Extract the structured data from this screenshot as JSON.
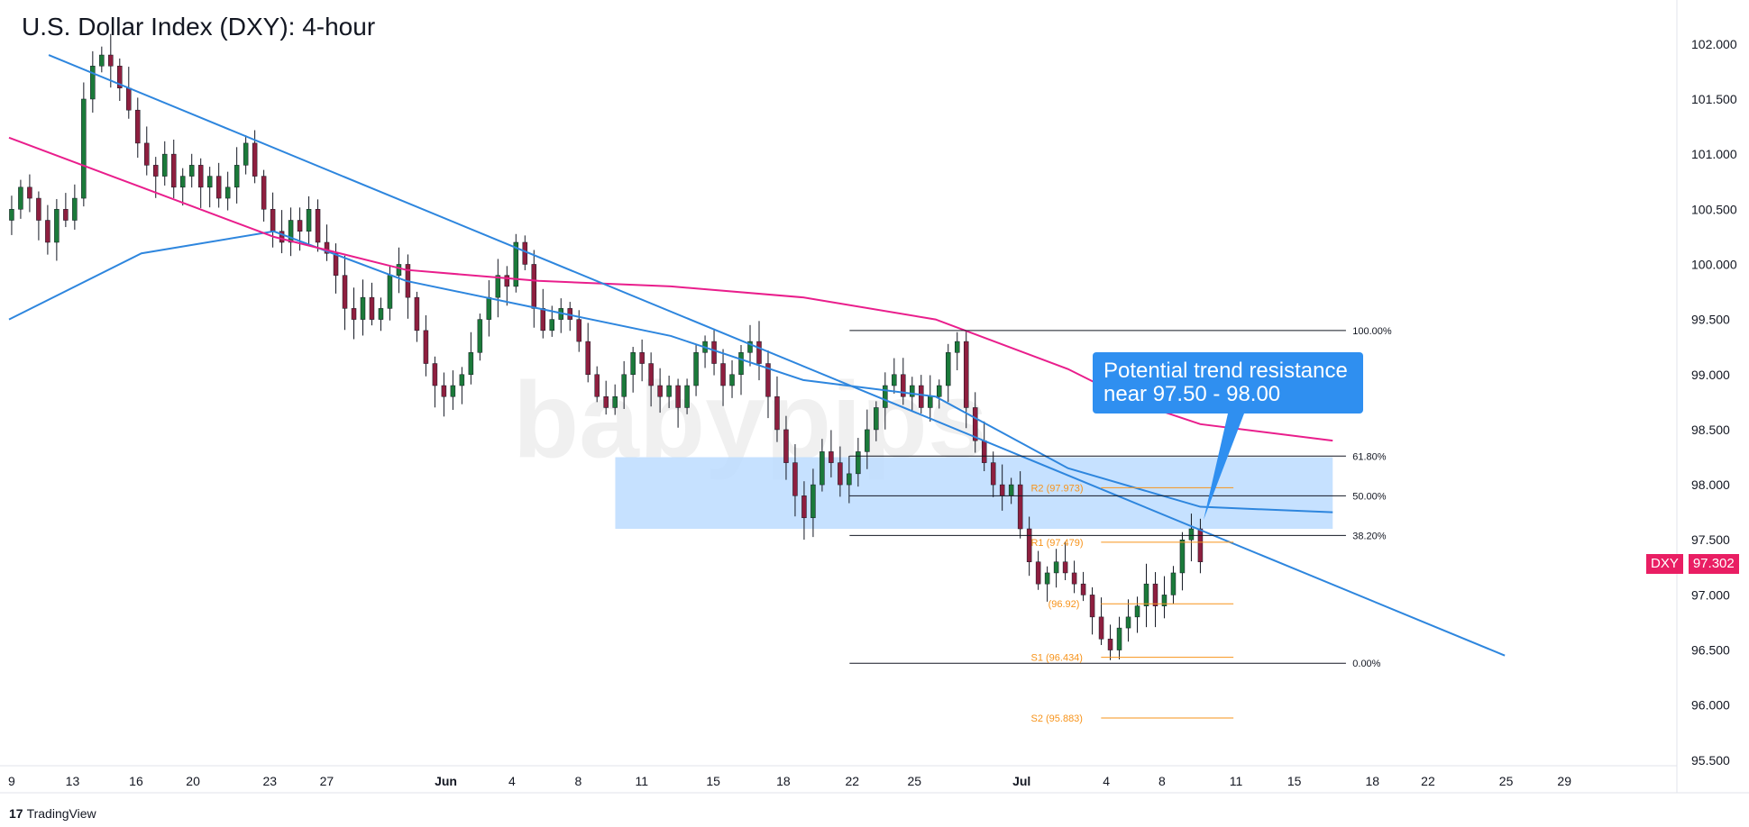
{
  "title": "U.S. Dollar Index (DXY): 4-hour",
  "brand": "TradingView",
  "brand_icon": "tradingview-logo-icon",
  "watermark": "babypips",
  "annotation": {
    "line1": "Potential trend resistance",
    "line2": "near 97.50 - 98.00"
  },
  "colors": {
    "up": "#26a69a",
    "up_body": "#1b7a3a",
    "down": "#8e1f3f",
    "ma_fast": "#2e86de",
    "ma_slow": "#e91e8c",
    "trendline": "#2e86de",
    "zone": "#bcdcff",
    "fib": "#131722",
    "pivot": "#f7931a",
    "callout": "#2f8ff0",
    "tag": "#e91e63"
  },
  "last_price": {
    "symbol": "DXY",
    "value": "97.302"
  },
  "chart_data": {
    "type": "candlestick",
    "ylim": [
      95.45,
      102.35
    ],
    "y_ticks": [
      "102.000",
      "101.500",
      "101.000",
      "100.500",
      "100.000",
      "99.500",
      "99.000",
      "98.500",
      "98.000",
      "97.500",
      "97.000",
      "96.500",
      "96.000",
      "95.500"
    ],
    "y_tick_values": [
      102.0,
      101.5,
      101.0,
      100.5,
      100.0,
      99.5,
      99.0,
      98.5,
      98.0,
      97.5,
      97.0,
      96.5,
      96.0,
      95.5
    ],
    "x_labels": [
      "9",
      "13",
      "16",
      "20",
      "23",
      "27",
      "Jun",
      "4",
      "8",
      "11",
      "15",
      "18",
      "22",
      "25",
      "Jul",
      "4",
      "8",
      "11",
      "15",
      "18",
      "22",
      "25",
      "29"
    ],
    "x_label_pos": [
      2,
      48,
      96,
      139,
      197,
      240,
      330,
      380,
      430,
      478,
      532,
      585,
      637,
      684,
      765,
      829,
      871,
      927,
      971,
      1030,
      1072,
      1131,
      1175
    ],
    "x_range": [
      0,
      1260
    ],
    "candles_close": [
      100.5,
      100.7,
      100.6,
      100.4,
      100.2,
      100.5,
      100.4,
      100.6,
      101.5,
      101.8,
      101.9,
      101.8,
      101.6,
      101.4,
      101.1,
      100.9,
      100.8,
      101.0,
      100.7,
      100.8,
      100.9,
      100.7,
      100.8,
      100.6,
      100.7,
      100.9,
      101.1,
      100.8,
      100.5,
      100.3,
      100.2,
      100.4,
      100.3,
      100.5,
      100.2,
      100.1,
      99.9,
      99.6,
      99.5,
      99.7,
      99.5,
      99.6,
      99.9,
      100.0,
      99.7,
      99.4,
      99.1,
      98.9,
      98.8,
      98.9,
      99.0,
      99.2,
      99.5,
      99.7,
      99.9,
      99.8,
      100.2,
      100.0,
      99.6,
      99.4,
      99.5,
      99.6,
      99.5,
      99.3,
      99.0,
      98.8,
      98.7,
      98.8,
      99.0,
      99.2,
      99.1,
      98.9,
      98.8,
      98.9,
      98.7,
      98.9,
      99.2,
      99.3,
      99.1,
      98.9,
      99.0,
      99.2,
      99.3,
      99.1,
      98.8,
      98.5,
      98.2,
      97.9,
      97.7,
      98.0,
      98.3,
      98.2,
      98.0,
      98.1,
      98.3,
      98.5,
      98.7,
      98.9,
      99.0,
      98.8,
      98.9,
      98.7,
      98.8,
      98.9,
      99.2,
      99.3,
      98.7,
      98.4,
      98.2,
      98.0,
      97.9,
      98.0,
      97.6,
      97.3,
      97.1,
      97.2,
      97.3,
      97.2,
      97.1,
      97.0,
      96.8,
      96.6,
      96.5,
      96.7,
      96.8,
      96.9,
      97.1,
      96.9,
      97.0,
      97.2,
      97.5,
      97.6,
      97.3
    ],
    "ma_fast": {
      "name": "",
      "x": [
        0,
        100,
        200,
        300,
        400,
        500,
        600,
        700,
        800,
        900,
        1000
      ],
      "y": [
        99.5,
        100.1,
        100.3,
        99.85,
        99.6,
        99.35,
        98.95,
        98.8,
        98.15,
        97.8,
        97.75
      ]
    },
    "ma_slow": {
      "name": "",
      "x": [
        0,
        100,
        200,
        300,
        400,
        500,
        600,
        700,
        800,
        850,
        900,
        1000
      ],
      "y": [
        101.15,
        100.7,
        100.25,
        99.95,
        99.85,
        99.8,
        99.7,
        99.5,
        99.05,
        98.75,
        98.55,
        98.4
      ]
    },
    "trendline": {
      "x": [
        30,
        1130
      ],
      "y": [
        101.9,
        96.45
      ]
    },
    "resistance_zone": {
      "x": [
        458,
        1000
      ],
      "y": [
        97.6,
        98.25
      ]
    },
    "fibonacci": [
      {
        "label": "100.00%",
        "value": 99.4
      },
      {
        "label": "61.80%",
        "value": 98.26
      },
      {
        "label": "50.00%",
        "value": 97.9
      },
      {
        "label": "38.20%",
        "value": 97.54
      },
      {
        "label": "0.00%",
        "value": 96.38
      }
    ],
    "pivots": [
      {
        "label": "R2 (97.973)",
        "value": 97.973
      },
      {
        "label": "R1 (97.479)",
        "value": 97.479
      },
      {
        "label": "(96.92)",
        "value": 96.92
      },
      {
        "label": "S1 (96.434)",
        "value": 96.434
      },
      {
        "label": "S2 (95.883)",
        "value": 95.883
      }
    ]
  }
}
